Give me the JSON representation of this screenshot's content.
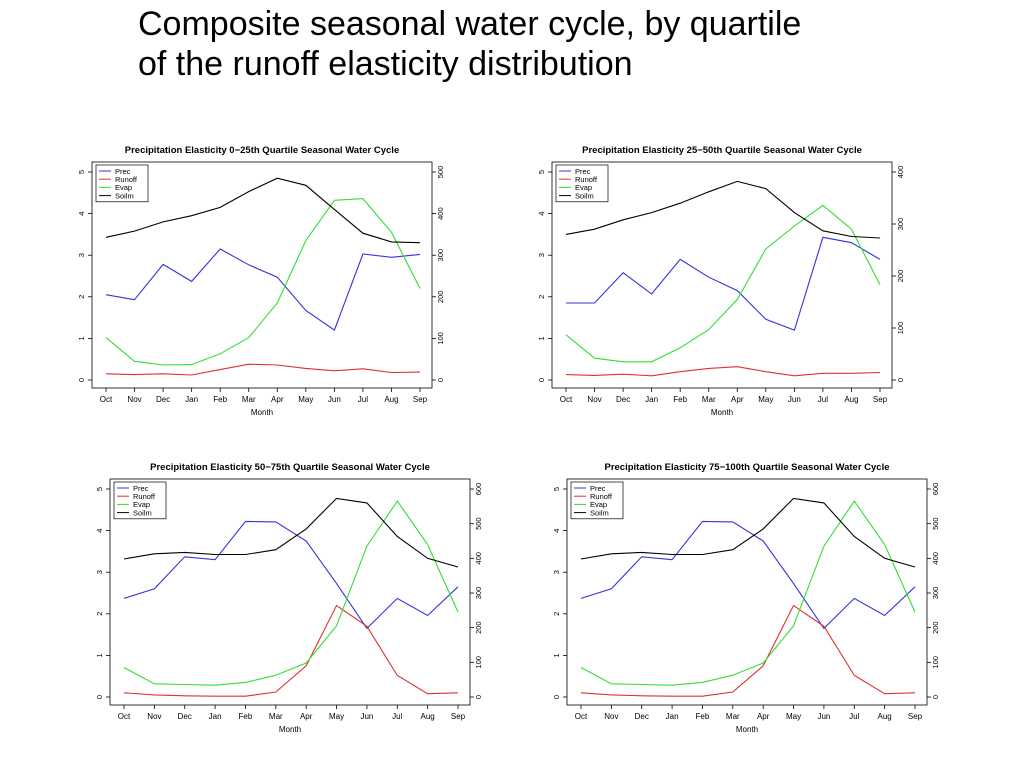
{
  "slide": {
    "title_line1": "Composite seasonal water cycle, by quartile",
    "title_line2": "of the runoff elasticity distribution"
  },
  "chart_data": [
    {
      "type": "line",
      "title": "Precipitation Elasticity 0−25th Quartile Seasonal Water Cycle",
      "xlabel": "Month",
      "categories": [
        "Oct",
        "Nov",
        "Dec",
        "Jan",
        "Feb",
        "Mar",
        "Apr",
        "May",
        "Jun",
        "Jul",
        "Aug",
        "Sep"
      ],
      "ylim": [
        0,
        5
      ],
      "yticks": [
        0,
        1,
        2,
        3,
        4,
        5
      ],
      "y2lim": [
        0,
        500
      ],
      "y2ticks": [
        0,
        100,
        200,
        300,
        400,
        500
      ],
      "legend": "top-left",
      "series": [
        {
          "name": "Prec",
          "color": "#3333dd",
          "axis": "left",
          "values": [
            2.05,
            1.93,
            2.78,
            2.37,
            3.15,
            2.77,
            2.47,
            1.67,
            1.2,
            3.03,
            2.95,
            3.02
          ]
        },
        {
          "name": "Runoff",
          "color": "#e03030",
          "axis": "left",
          "values": [
            0.15,
            0.13,
            0.15,
            0.12,
            0.25,
            0.38,
            0.36,
            0.28,
            0.22,
            0.27,
            0.18,
            0.19
          ]
        },
        {
          "name": "Evap",
          "color": "#33dd33",
          "axis": "right",
          "values": [
            102,
            45,
            36,
            37,
            63,
            102,
            185,
            335,
            432,
            436,
            355,
            220
          ]
        },
        {
          "name": "Soilm",
          "color": "#000000",
          "axis": "right",
          "values": [
            343,
            358,
            380,
            395,
            415,
            453,
            485,
            468,
            410,
            353,
            332,
            330
          ]
        }
      ]
    },
    {
      "type": "line",
      "title": "Precipitation Elasticity 25−50th Quartile Seasonal Water Cycle",
      "xlabel": "Month",
      "categories": [
        "Oct",
        "Nov",
        "Dec",
        "Jan",
        "Feb",
        "Mar",
        "Apr",
        "May",
        "Jun",
        "Jul",
        "Aug",
        "Sep"
      ],
      "ylim": [
        0,
        5
      ],
      "yticks": [
        0,
        1,
        2,
        3,
        4,
        5
      ],
      "y2lim": [
        0,
        400
      ],
      "y2ticks": [
        0,
        100,
        200,
        300,
        400
      ],
      "legend": "top-left",
      "series": [
        {
          "name": "Prec",
          "color": "#3333dd",
          "axis": "left",
          "values": [
            1.85,
            1.85,
            2.58,
            2.07,
            2.9,
            2.47,
            2.15,
            1.46,
            1.2,
            3.43,
            3.3,
            2.9
          ]
        },
        {
          "name": "Runoff",
          "color": "#e03030",
          "axis": "left",
          "values": [
            0.13,
            0.11,
            0.14,
            0.1,
            0.2,
            0.28,
            0.32,
            0.2,
            0.1,
            0.16,
            0.16,
            0.18
          ]
        },
        {
          "name": "Evap",
          "color": "#33dd33",
          "axis": "right",
          "values": [
            87,
            42,
            35,
            35,
            62,
            97,
            155,
            252,
            296,
            336,
            290,
            183
          ]
        },
        {
          "name": "Soilm",
          "color": "#000000",
          "axis": "right",
          "values": [
            280,
            290,
            308,
            322,
            340,
            362,
            382,
            368,
            322,
            287,
            276,
            273
          ]
        }
      ]
    },
    {
      "type": "line",
      "title": "Precipitation Elasticity 50−75th Quartile Seasonal Water Cycle",
      "xlabel": "Month",
      "categories": [
        "Oct",
        "Nov",
        "Dec",
        "Jan",
        "Feb",
        "Mar",
        "Apr",
        "May",
        "Jun",
        "Jul",
        "Aug",
        "Sep"
      ],
      "ylim": [
        0,
        5
      ],
      "yticks": [
        0,
        1,
        2,
        3,
        4,
        5
      ],
      "y2lim": [
        0,
        600
      ],
      "y2ticks": [
        0,
        100,
        200,
        300,
        400,
        500,
        600
      ],
      "legend": "top-left",
      "series": [
        {
          "name": "Prec",
          "color": "#3333dd",
          "axis": "left",
          "values": [
            2.37,
            2.6,
            3.37,
            3.3,
            4.22,
            4.21,
            3.75,
            2.73,
            1.65,
            2.37,
            1.96,
            2.65
          ]
        },
        {
          "name": "Runoff",
          "color": "#e03030",
          "axis": "left",
          "values": [
            0.1,
            0.05,
            0.03,
            0.02,
            0.02,
            0.12,
            0.75,
            2.2,
            1.7,
            0.52,
            0.08,
            0.1
          ]
        },
        {
          "name": "Evap",
          "color": "#33dd33",
          "axis": "right",
          "values": [
            85,
            38,
            36,
            34,
            42,
            63,
            98,
            205,
            435,
            565,
            440,
            245
          ]
        },
        {
          "name": "Soilm",
          "color": "#000000",
          "axis": "right",
          "values": [
            398,
            413,
            417,
            411,
            411,
            425,
            485,
            573,
            560,
            463,
            400,
            375
          ]
        }
      ]
    },
    {
      "type": "line",
      "title": "Precipitation Elasticity 75−100th Quartile Seasonal Water Cycle",
      "xlabel": "Month",
      "categories": [
        "Oct",
        "Nov",
        "Dec",
        "Jan",
        "Feb",
        "Mar",
        "Apr",
        "May",
        "Jun",
        "Jul",
        "Aug",
        "Sep"
      ],
      "ylim": [
        0,
        5
      ],
      "yticks": [
        0,
        1,
        2,
        3,
        4,
        5
      ],
      "y2lim": [
        0,
        600
      ],
      "y2ticks": [
        0,
        100,
        200,
        300,
        400,
        500,
        600
      ],
      "legend": "top-left",
      "series": [
        {
          "name": "Prec",
          "color": "#3333dd",
          "axis": "left",
          "values": [
            2.37,
            2.6,
            3.37,
            3.3,
            4.22,
            4.21,
            3.75,
            2.73,
            1.65,
            2.37,
            1.96,
            2.65
          ]
        },
        {
          "name": "Runoff",
          "color": "#e03030",
          "axis": "left",
          "values": [
            0.1,
            0.05,
            0.03,
            0.02,
            0.02,
            0.12,
            0.75,
            2.2,
            1.7,
            0.52,
            0.08,
            0.1
          ]
        },
        {
          "name": "Evap",
          "color": "#33dd33",
          "axis": "right",
          "values": [
            85,
            38,
            36,
            34,
            42,
            63,
            98,
            205,
            435,
            565,
            440,
            245
          ]
        },
        {
          "name": "Soilm",
          "color": "#000000",
          "axis": "right",
          "values": [
            398,
            413,
            417,
            411,
            411,
            425,
            485,
            573,
            560,
            463,
            400,
            375
          ]
        }
      ]
    }
  ]
}
